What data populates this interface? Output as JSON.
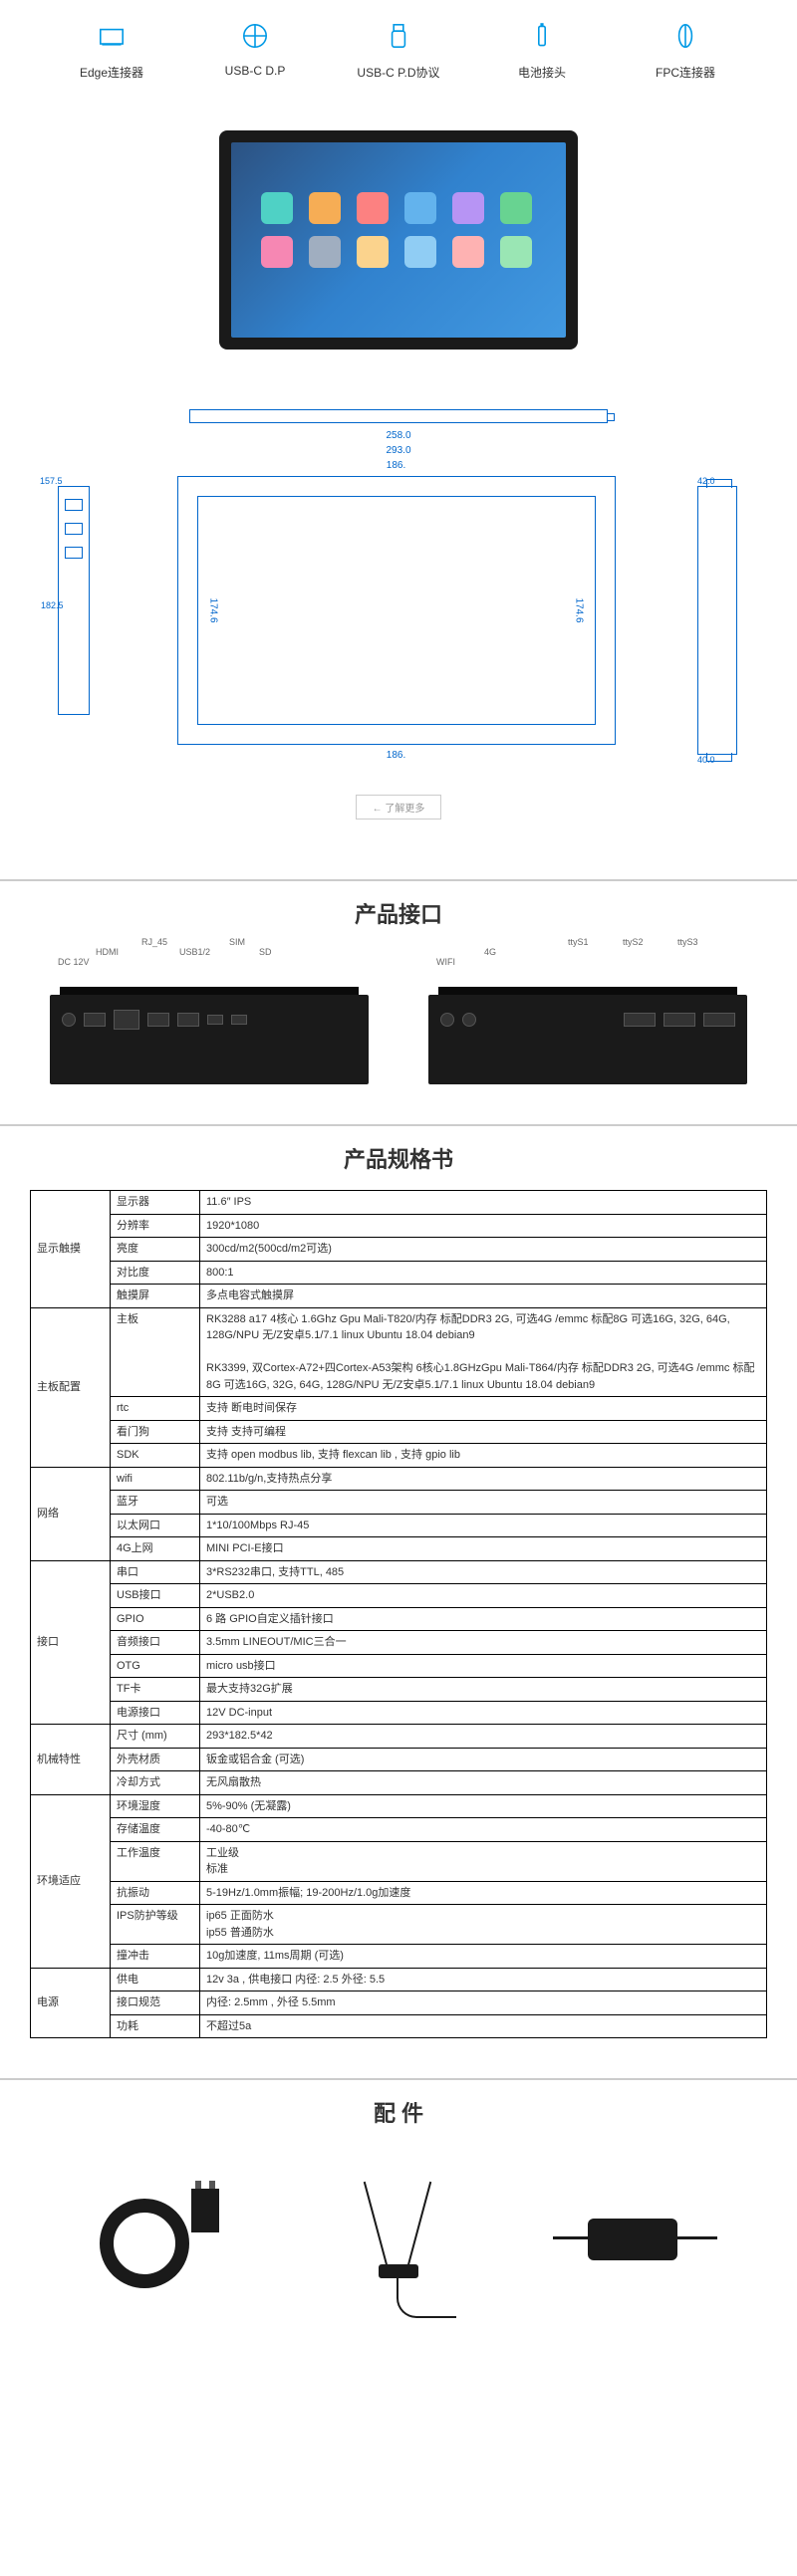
{
  "features": [
    {
      "label": "Edge连接器",
      "icon": "edge"
    },
    {
      "label": "USB-C D.P",
      "icon": "usbc"
    },
    {
      "label": "USB-C P.D协议",
      "icon": "usbpd"
    },
    {
      "label": "电池接头",
      "icon": "battery"
    },
    {
      "label": "FPC连接器",
      "icon": "fpc"
    }
  ],
  "drawings": {
    "dim_258": "258.0",
    "dim_293": "293.0",
    "dim_186": "186.",
    "dim_1575": "157.5",
    "dim_1825": "182.5",
    "dim_1746": "174.6",
    "dim_42": "42.0",
    "dim_400": "40.0",
    "more_btn": "← 了解更多"
  },
  "sections": {
    "interface_heading": "产品接口",
    "spec_heading": "产品规格书",
    "accessories_heading": "配 件"
  },
  "interface_labels_left": {
    "dc12v": "DC 12V",
    "hdmi": "HDMI",
    "rj45": "RJ_45",
    "usb": "USB1/2",
    "sim": "SIM",
    "sd": "SD"
  },
  "interface_labels_right": {
    "wifi": "WIFI",
    "4g": "4G",
    "tty1": "ttyS1",
    "tty2": "ttyS2",
    "tty3": "ttyS3"
  },
  "spec_groups": [
    {
      "cat": "显示触摸",
      "rows": [
        {
          "sub": "显示器",
          "val": "11.6″ IPS"
        },
        {
          "sub": "分辨率",
          "val": "1920*1080"
        },
        {
          "sub": "亮度",
          "val": "300cd/m2(500cd/m2可选)"
        },
        {
          "sub": "对比度",
          "val": "800:1"
        },
        {
          "sub": "触摸屏",
          "val": "多点电容式触摸屏"
        }
      ]
    },
    {
      "cat": "主板配置",
      "rows": [
        {
          "sub": "主板",
          "val": "RK3288 a17 4核心 1.6Ghz Gpu Mali-T820/内存 标配DDR3 2G, 可选4G /emmc 标配8G 可选16G, 32G, 64G, 128G/NPU 无/Z安卓5.1/7.1 linux Ubuntu 18.04 debian9\n\nRK3399, 双Cortex-A72+四Cortex-A53架构 6核心1.8GHzGpu Mali-T864/内存 标配DDR3 2G, 可选4G /emmc 标配8G 可选16G, 32G, 64G, 128G/NPU 无/Z安卓5.1/7.1 linux Ubuntu 18.04 debian9"
        },
        {
          "sub": "rtc",
          "val": "支持 断电时间保存"
        },
        {
          "sub": "看门狗",
          "val": "支持 支持可编程"
        },
        {
          "sub": "SDK",
          "val": "支持 open modbus lib,  支持  flexcan lib ,  支持 gpio lib"
        }
      ]
    },
    {
      "cat": "网络",
      "rows": [
        {
          "sub": "wifi",
          "val": "802.11b/g/n,支持热点分享"
        },
        {
          "sub": "蓝牙",
          "val": "可选"
        },
        {
          "sub": "以太网口",
          "val": "1*10/100Mbps RJ-45"
        },
        {
          "sub": "4G上网",
          "val": "MINI PCI-E接口"
        }
      ]
    },
    {
      "cat": "接口",
      "rows": [
        {
          "sub": "串口",
          "val": "3*RS232串口, 支持TTL, 485"
        },
        {
          "sub": "USB接口",
          "val": "2*USB2.0"
        },
        {
          "sub": "GPIO",
          "val": "6 路 GPIO自定义插针接口"
        },
        {
          "sub": "音频接口",
          "val": "3.5mm LINEOUT/MIC三合一"
        },
        {
          "sub": "OTG",
          "val": "micro usb接口"
        },
        {
          "sub": "TF卡",
          "val": "最大支持32G扩展"
        },
        {
          "sub": "电源接口",
          "val": "12V DC-input"
        }
      ]
    },
    {
      "cat": "机械特性",
      "rows": [
        {
          "sub": "尺寸 (mm)",
          "val": "293*182.5*42"
        },
        {
          "sub": "外壳材质",
          "val": "钣金或铝合金 (可选)"
        },
        {
          "sub": "冷却方式",
          "val": "无风扇散热"
        }
      ]
    },
    {
      "cat": "环境适应",
      "rows": [
        {
          "sub": "环境湿度",
          "val": "5%-90% (无凝露)"
        },
        {
          "sub": "存储温度",
          "val": "-40-80℃"
        },
        {
          "sub": "工作温度",
          "val": "工业级\n标准"
        },
        {
          "sub": "抗振动",
          "val": "5-19Hz/1.0mm振幅; 19-200Hz/1.0g加速度"
        },
        {
          "sub": "IPS防护等级",
          "val": "ip65 正面防水\nip55 普通防水"
        },
        {
          "sub": "撞冲击",
          "val": "10g加速度, 11ms周期 (可选)"
        }
      ]
    },
    {
      "cat": "电源",
      "rows": [
        {
          "sub": "供电",
          "val": "12v  3a ,  供电接口 内径: 2.5   外径: 5.5"
        },
        {
          "sub": "接口规范",
          "val": "内径: 2.5mm , 外径 5.5mm"
        },
        {
          "sub": "功耗",
          "val": "不超过5a"
        }
      ]
    }
  ]
}
